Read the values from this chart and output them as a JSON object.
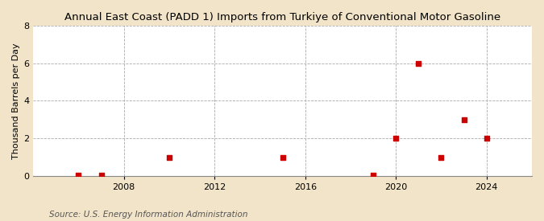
{
  "title": "Annual East Coast (PADD 1) Imports from Turkiye of Conventional Motor Gasoline",
  "ylabel": "Thousand Barrels per Day",
  "source": "Source: U.S. Energy Information Administration",
  "background_color": "#f2e4c8",
  "plot_background_color": "#ffffff",
  "marker_color": "#cc0000",
  "marker": "s",
  "marker_size": 4,
  "data_x": [
    2006,
    2007,
    2010,
    2015,
    2019,
    2020,
    2021,
    2022,
    2023,
    2024
  ],
  "data_y": [
    0.05,
    0.05,
    1.0,
    1.0,
    0.05,
    2.0,
    6.0,
    1.0,
    3.0,
    2.0
  ],
  "xlim": [
    2004,
    2026
  ],
  "ylim": [
    0,
    8
  ],
  "xticks": [
    2008,
    2012,
    2016,
    2020,
    2024
  ],
  "yticks": [
    0,
    2,
    4,
    6,
    8
  ],
  "grid_color": "#aaaaaa",
  "grid_linestyle": "--",
  "title_fontsize": 9.5,
  "label_fontsize": 8,
  "tick_fontsize": 8,
  "source_fontsize": 7.5
}
